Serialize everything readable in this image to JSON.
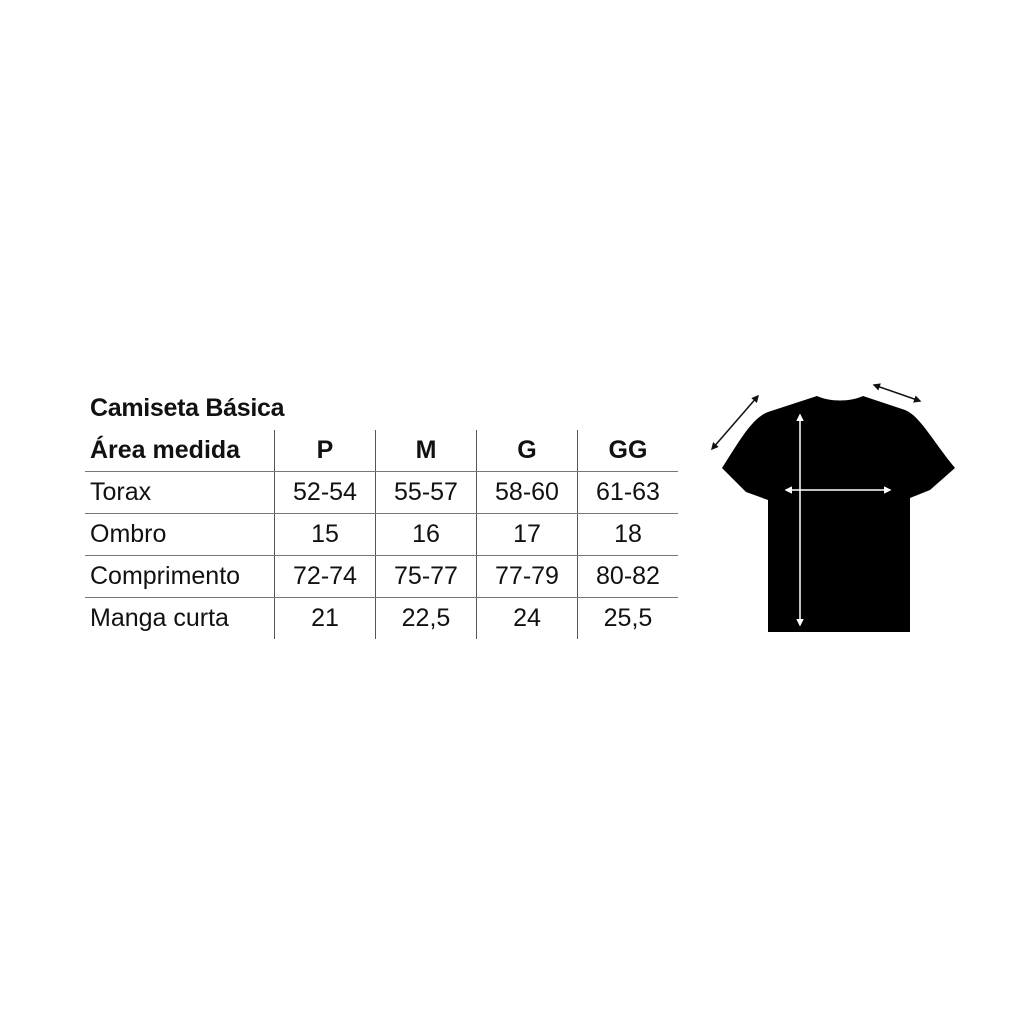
{
  "title": "Camiseta Básica",
  "table": {
    "header": [
      "Área medida",
      "P",
      "M",
      "G",
      "GG"
    ],
    "rows": [
      [
        "Torax",
        "52-54",
        "55-57",
        "58-60",
        "61-63"
      ],
      [
        "Ombro",
        "15",
        "16",
        "17",
        "18"
      ],
      [
        "Comprimento",
        "72-74",
        "75-77",
        "77-79",
        "80-82"
      ],
      [
        "Manga curta",
        "21",
        "22,5",
        "24",
        "25,5"
      ]
    ]
  },
  "image": {
    "icon": "black-tshirt-measurement-diagram",
    "shirt_color": "#000000",
    "arrow_color": "#ffffff"
  }
}
